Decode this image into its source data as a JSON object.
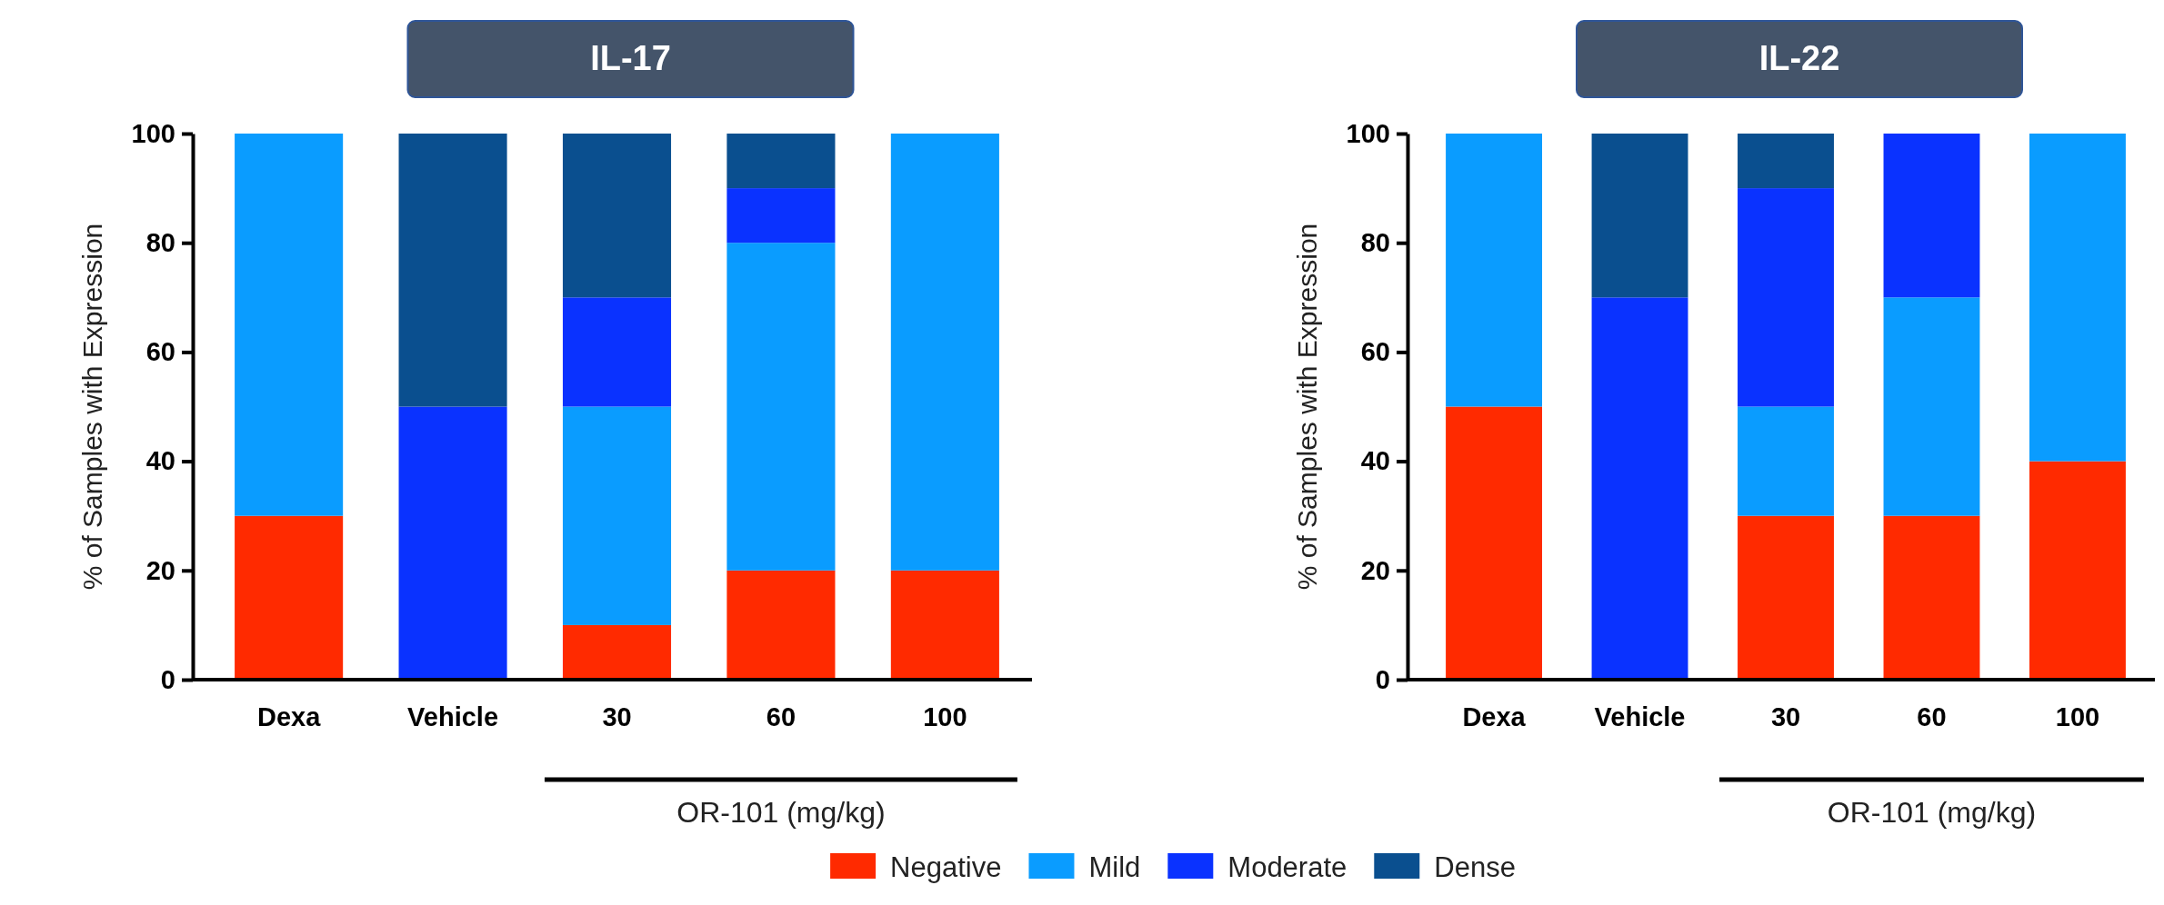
{
  "chart_data": [
    {
      "type": "bar",
      "stacked": true,
      "title": "IL-17",
      "ylabel": "% of Samples with Expression",
      "xlabel": "OR-101 (mg/kg)",
      "categories": [
        "Dexa",
        "Vehicle",
        "30",
        "60",
        "100"
      ],
      "ylim": [
        0,
        100
      ],
      "yticks": [
        0,
        20,
        40,
        60,
        80,
        100
      ],
      "legend": "bottom",
      "series": [
        {
          "name": "Negative",
          "color": "#ff2a00",
          "values": [
            30,
            0,
            10,
            20,
            20
          ]
        },
        {
          "name": "Mild",
          "color": "#0a9cff",
          "values": [
            70,
            0,
            40,
            60,
            80
          ]
        },
        {
          "name": "Moderate",
          "color": "#0a32ff",
          "values": [
            0,
            50,
            20,
            10,
            0
          ]
        },
        {
          "name": "Dense",
          "color": "#0a4f8f",
          "values": [
            0,
            50,
            30,
            10,
            0
          ]
        }
      ]
    },
    {
      "type": "bar",
      "stacked": true,
      "title": "IL-22",
      "ylabel": "% of Samples with Expression",
      "xlabel": "OR-101 (mg/kg)",
      "categories": [
        "Dexa",
        "Vehicle",
        "30",
        "60",
        "100"
      ],
      "ylim": [
        0,
        100
      ],
      "yticks": [
        0,
        20,
        40,
        60,
        80,
        100
      ],
      "series": [
        {
          "name": "Negative",
          "color": "#ff2a00",
          "values": [
            50,
            0,
            30,
            30,
            40
          ]
        },
        {
          "name": "Mild",
          "color": "#0a9cff",
          "values": [
            50,
            0,
            20,
            40,
            60
          ]
        },
        {
          "name": "Moderate",
          "color": "#0a32ff",
          "values": [
            0,
            70,
            40,
            30,
            0
          ]
        },
        {
          "name": "Dense",
          "color": "#0a4f8f",
          "values": [
            0,
            30,
            10,
            0,
            0
          ]
        }
      ]
    }
  ]
}
